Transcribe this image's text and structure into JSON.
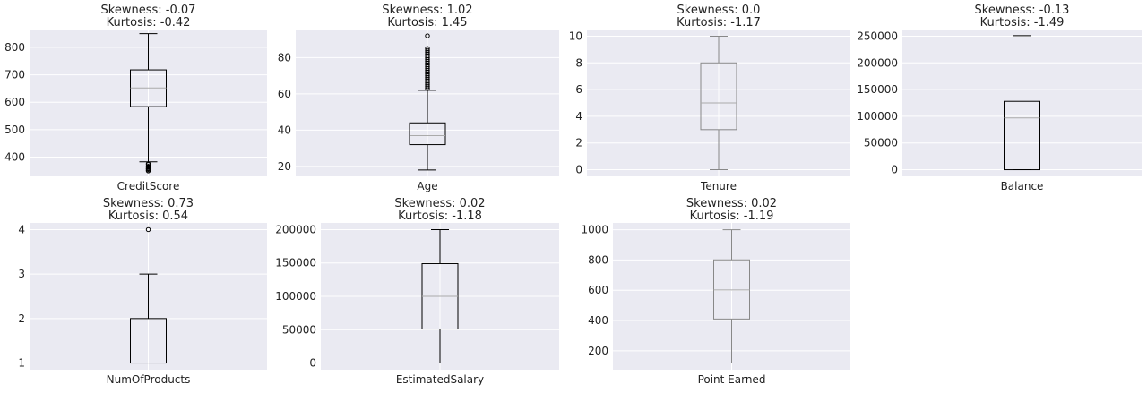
{
  "figure": {
    "background": "#ffffff",
    "axes_background": "#eaeaf2",
    "grid_color": "#ffffff",
    "box_color": "#000000",
    "median_color": "#aaaaaa",
    "text_color": "#222222"
  },
  "chart_data": [
    {
      "type": "box",
      "label": "CreditScore",
      "title_lines": [
        "Skewness: -0.07",
        "Kurtosis: -0.42"
      ],
      "ylim": [
        330,
        865
      ],
      "yticks": [
        400,
        500,
        600,
        700,
        800
      ],
      "tick_labels": [
        "400",
        "500",
        "600",
        "700",
        "800"
      ],
      "whisker_low": 383,
      "q1": 584,
      "median": 652,
      "q3": 718,
      "whisker_high": 850,
      "outliers": [
        350,
        351,
        355,
        358,
        359,
        363,
        365,
        367,
        373,
        376
      ],
      "box_color": "#000000",
      "grid": true
    },
    {
      "type": "box",
      "label": "Age",
      "title_lines": [
        "Skewness: 1.02",
        "Kurtosis: 1.45"
      ],
      "ylim": [
        14.5,
        95.5
      ],
      "yticks": [
        20,
        40,
        60,
        80
      ],
      "tick_labels": [
        "20",
        "40",
        "60",
        "80"
      ],
      "whisker_low": 18,
      "q1": 32,
      "median": 37,
      "q3": 44,
      "whisker_high": 62,
      "outliers": [
        63,
        64,
        65,
        66,
        67,
        68,
        69,
        70,
        71,
        72,
        73,
        74,
        75,
        76,
        77,
        78,
        79,
        80,
        81,
        82,
        83,
        84,
        85,
        92
      ],
      "box_color": "#000000",
      "grid": true
    },
    {
      "type": "box",
      "label": "Tenure",
      "title_lines": [
        "Skewness: 0.0",
        "Kurtosis: -1.17"
      ],
      "ylim": [
        -0.5,
        10.5
      ],
      "yticks": [
        0,
        2,
        4,
        6,
        8,
        10
      ],
      "tick_labels": [
        "0",
        "2",
        "4",
        "6",
        "8",
        "10"
      ],
      "whisker_low": 0,
      "q1": 3,
      "median": 5,
      "q3": 8,
      "whisker_high": 10,
      "outliers": [],
      "box_color": "#888888",
      "grid": true
    },
    {
      "type": "box",
      "label": "Balance",
      "title_lines": [
        "Skewness: -0.13",
        "Kurtosis: -1.49"
      ],
      "ylim": [
        -12500,
        262500
      ],
      "yticks": [
        0,
        50000,
        100000,
        150000,
        200000,
        250000
      ],
      "tick_labels": [
        "0",
        "50000",
        "100000",
        "150000",
        "200000",
        "250000"
      ],
      "whisker_low": 0,
      "q1": 0,
      "median": 97000,
      "q3": 128000,
      "whisker_high": 251000,
      "outliers": [],
      "box_color": "#000000",
      "grid": true
    },
    {
      "type": "box",
      "label": "NumOfProducts",
      "title_lines": [
        "Skewness: 0.73",
        "Kurtosis: 0.54"
      ],
      "ylim": [
        0.85,
        4.15
      ],
      "yticks": [
        1,
        2,
        3,
        4
      ],
      "tick_labels": [
        "1",
        "2",
        "3",
        "4"
      ],
      "whisker_low": 1,
      "q1": 1,
      "median": 1,
      "q3": 2,
      "whisker_high": 3,
      "outliers": [
        4
      ],
      "box_color": "#000000",
      "grid": true
    },
    {
      "type": "box",
      "label": "EstimatedSalary",
      "title_lines": [
        "Skewness: 0.02",
        "Kurtosis: -1.18"
      ],
      "ylim": [
        -10000,
        210000
      ],
      "yticks": [
        0,
        50000,
        100000,
        150000,
        200000
      ],
      "tick_labels": [
        "0",
        "50000",
        "100000",
        "150000",
        "200000"
      ],
      "whisker_low": 11,
      "q1": 51000,
      "median": 100000,
      "q3": 149000,
      "whisker_high": 199990,
      "outliers": [],
      "box_color": "#000000",
      "grid": true
    },
    {
      "type": "box",
      "label": "Point Earned",
      "title_lines": [
        "Skewness: 0.02",
        "Kurtosis: -1.19"
      ],
      "ylim": [
        75,
        1045
      ],
      "yticks": [
        200,
        400,
        600,
        800,
        1000
      ],
      "tick_labels": [
        "200",
        "400",
        "600",
        "800",
        "1000"
      ],
      "whisker_low": 119,
      "q1": 410,
      "median": 602,
      "q3": 801,
      "whisker_high": 1000,
      "outliers": [],
      "box_color": "#888888",
      "grid": true
    }
  ]
}
